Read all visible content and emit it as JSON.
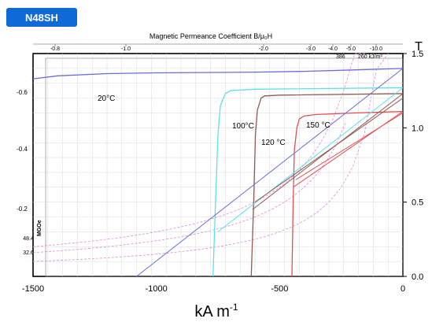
{
  "badge": "N48SH",
  "chart_data": {
    "type": "line",
    "title": "Magnetic Permeance Coefficient B/μ₀H",
    "xlabel": "kA· m-1",
    "x_unit_base": "kA",
    "x_unit_exp": "-1",
    "x_unit_mid": " m",
    "ylabel_right": "T",
    "xlim": [
      -1500,
      0
    ],
    "ylim_right": [
      0,
      1.5
    ],
    "x_ticks": [
      "-1500",
      "-1000",
      "-500",
      "0"
    ],
    "x_tick_values": [
      -1500,
      -1000,
      -500,
      0
    ],
    "y_ticks_right": [
      "0.0",
      "0.5",
      "1.0",
      "1.5"
    ],
    "y_tick_values_right": [
      0,
      0.5,
      1.0,
      1.5
    ],
    "top_axis_labels": [
      "-0.8",
      "-1.0",
      "-2.0",
      "-3.0",
      "-4.0",
      "-5.0",
      "-10.0"
    ],
    "left_axis_label": "MGOe",
    "left_axis_ticks": [
      "-0.6",
      "-0.4",
      "-0.2"
    ],
    "energy_labels": [
      "48.4",
      "32.6"
    ],
    "field_labels": [
      "386",
      "260 kJ/m³"
    ],
    "legend": "none",
    "grid": true,
    "series": [
      {
        "name": "20°C",
        "color": "#6a6cd9",
        "x": [
          -1500,
          -1400,
          -1200,
          -1000,
          -800,
          -600,
          -400,
          -200,
          0
        ],
        "y": [
          1.33,
          1.35,
          1.365,
          1.37,
          1.372,
          1.375,
          1.38,
          1.39,
          1.4
        ]
      },
      {
        "name": "100°C",
        "color": "#5ee0ea",
        "x": [
          -770,
          -760,
          -750,
          -740,
          -720,
          -700,
          -650,
          -600,
          0
        ],
        "y": [
          0,
          0.5,
          0.95,
          1.15,
          1.23,
          1.25,
          1.255,
          1.26,
          1.27
        ]
      },
      {
        "name": "120 °C",
        "color": "#8f5a52",
        "x": [
          -615,
          -605,
          -598,
          -590,
          -575,
          -560,
          -500,
          0
        ],
        "y": [
          0,
          0.5,
          0.95,
          1.12,
          1.2,
          1.215,
          1.22,
          1.23
        ]
      },
      {
        "name": "150 °C",
        "color": "#e05050",
        "x": [
          -450,
          -445,
          -440,
          -430,
          -420,
          -400,
          -350,
          -200,
          0
        ],
        "y": [
          0,
          0.5,
          0.85,
          1.0,
          1.06,
          1.08,
          1.09,
          1.1,
          1.11
        ]
      }
    ],
    "recoil_lines": [
      {
        "color": "#6a6cd9",
        "x": [
          -1080,
          0
        ],
        "y": [
          0,
          1.4
        ]
      },
      {
        "color": "#5ee0ea",
        "x": [
          -750,
          0
        ],
        "y": [
          0.3,
          1.27
        ]
      },
      {
        "color": "#8f5a52",
        "x": [
          -610,
          0
        ],
        "y": [
          0.45,
          1.23
        ]
      },
      {
        "color": "#8f5a52",
        "x": [
          -600,
          0
        ],
        "y": [
          0.5,
          1.2
        ]
      },
      {
        "color": "#e05050",
        "x": [
          -445,
          0
        ],
        "y": [
          0.6,
          1.11
        ]
      },
      {
        "color": "#e05050",
        "x": [
          -435,
          0
        ],
        "y": [
          0.65,
          1.1
        ]
      }
    ]
  }
}
